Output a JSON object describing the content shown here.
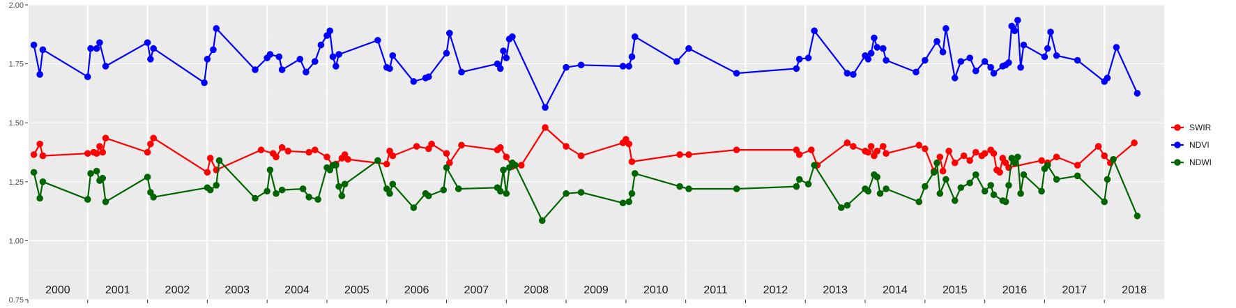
{
  "chart_data": {
    "type": "line",
    "title": "",
    "xlabel": "",
    "ylabel": "",
    "ylim": [
      0.75,
      2.0
    ],
    "y_ticks": [
      "0.75",
      "1.00",
      "1.25",
      "1.50",
      "1.75",
      "2.00"
    ],
    "xlim": [
      2000.0,
      2019.0
    ],
    "x_ticks": [
      2000,
      2001,
      2002,
      2003,
      2004,
      2005,
      2006,
      2007,
      2008,
      2009,
      2010,
      2011,
      2012,
      2013,
      2014,
      2015,
      2016,
      2017,
      2018
    ],
    "year_labels": [
      "2000",
      "2001",
      "2002",
      "2003",
      "2004",
      "2005",
      "2006",
      "2007",
      "2008",
      "2009",
      "2010",
      "2011",
      "2012",
      "2013",
      "2014",
      "2015",
      "2016",
      "2017",
      "2018"
    ],
    "grid": true,
    "legend_position": "right",
    "series": [
      {
        "name": "SWIR",
        "color": "#ff0000",
        "points": [
          [
            2000.1,
            1.365
          ],
          [
            2000.2,
            1.41
          ],
          [
            2000.25,
            1.36
          ],
          [
            2001.0,
            1.37
          ],
          [
            2001.1,
            1.375
          ],
          [
            2001.15,
            1.37
          ],
          [
            2001.2,
            1.4
          ],
          [
            2001.25,
            1.375
          ],
          [
            2001.3,
            1.435
          ],
          [
            2002.0,
            1.375
          ],
          [
            2002.05,
            1.41
          ],
          [
            2002.1,
            1.435
          ],
          [
            2003.0,
            1.29
          ],
          [
            2003.05,
            1.35
          ],
          [
            2003.15,
            1.3
          ],
          [
            2003.9,
            1.385
          ],
          [
            2004.1,
            1.37
          ],
          [
            2004.15,
            1.355
          ],
          [
            2004.25,
            1.395
          ],
          [
            2004.35,
            1.38
          ],
          [
            2004.7,
            1.375
          ],
          [
            2004.8,
            1.385
          ],
          [
            2005.0,
            1.355
          ],
          [
            2005.1,
            1.32
          ],
          [
            2005.15,
            1.325
          ],
          [
            2005.25,
            1.35
          ],
          [
            2005.3,
            1.365
          ],
          [
            2005.35,
            1.345
          ],
          [
            2006.0,
            1.325
          ],
          [
            2006.05,
            1.38
          ],
          [
            2006.1,
            1.36
          ],
          [
            2006.5,
            1.4
          ],
          [
            2006.7,
            1.39
          ],
          [
            2006.75,
            1.41
          ],
          [
            2007.0,
            1.37
          ],
          [
            2007.05,
            1.33
          ],
          [
            2007.25,
            1.405
          ],
          [
            2007.85,
            1.385
          ],
          [
            2007.9,
            1.395
          ],
          [
            2008.0,
            1.355
          ],
          [
            2008.1,
            1.315
          ],
          [
            2008.25,
            1.32
          ],
          [
            2008.65,
            1.48
          ],
          [
            2009.0,
            1.4
          ],
          [
            2009.25,
            1.36
          ],
          [
            2009.95,
            1.415
          ],
          [
            2010.0,
            1.43
          ],
          [
            2010.05,
            1.41
          ],
          [
            2010.1,
            1.335
          ],
          [
            2010.9,
            1.365
          ],
          [
            2011.05,
            1.365
          ],
          [
            2011.85,
            1.385
          ],
          [
            2012.85,
            1.385
          ],
          [
            2012.9,
            1.365
          ],
          [
            2013.1,
            1.385
          ],
          [
            2013.2,
            1.32
          ],
          [
            2013.7,
            1.415
          ],
          [
            2013.8,
            1.4
          ],
          [
            2014.0,
            1.38
          ],
          [
            2014.05,
            1.375
          ],
          [
            2014.1,
            1.4
          ],
          [
            2014.15,
            1.36
          ],
          [
            2014.2,
            1.38
          ],
          [
            2014.3,
            1.4
          ],
          [
            2014.35,
            1.37
          ],
          [
            2014.9,
            1.405
          ],
          [
            2015.0,
            1.39
          ],
          [
            2015.15,
            1.295
          ],
          [
            2015.25,
            1.355
          ],
          [
            2015.3,
            1.295
          ],
          [
            2015.4,
            1.38
          ],
          [
            2015.5,
            1.33
          ],
          [
            2015.65,
            1.36
          ],
          [
            2015.75,
            1.34
          ],
          [
            2015.85,
            1.375
          ],
          [
            2015.95,
            1.36
          ],
          [
            2016.0,
            1.37
          ],
          [
            2016.1,
            1.385
          ],
          [
            2016.15,
            1.37
          ],
          [
            2016.2,
            1.3
          ],
          [
            2016.25,
            1.29
          ],
          [
            2016.3,
            1.35
          ],
          [
            2016.35,
            1.33
          ],
          [
            2016.4,
            1.31
          ],
          [
            2016.95,
            1.34
          ],
          [
            2017.05,
            1.33
          ],
          [
            2017.2,
            1.355
          ],
          [
            2017.55,
            1.32
          ],
          [
            2017.9,
            1.4
          ],
          [
            2018.0,
            1.36
          ],
          [
            2018.1,
            1.33
          ],
          [
            2018.5,
            1.415
          ]
        ]
      },
      {
        "name": "NDVI",
        "color": "#0000ff",
        "points": [
          [
            2000.1,
            1.83
          ],
          [
            2000.2,
            1.705
          ],
          [
            2000.25,
            1.81
          ],
          [
            2001.0,
            1.695
          ],
          [
            2001.05,
            1.815
          ],
          [
            2001.15,
            1.815
          ],
          [
            2001.2,
            1.84
          ],
          [
            2001.3,
            1.74
          ],
          [
            2002.0,
            1.84
          ],
          [
            2002.05,
            1.77
          ],
          [
            2002.1,
            1.815
          ],
          [
            2002.95,
            1.67
          ],
          [
            2003.0,
            1.77
          ],
          [
            2003.1,
            1.81
          ],
          [
            2003.15,
            1.9
          ],
          [
            2003.8,
            1.725
          ],
          [
            2004.0,
            1.775
          ],
          [
            2004.05,
            1.79
          ],
          [
            2004.2,
            1.78
          ],
          [
            2004.25,
            1.725
          ],
          [
            2004.55,
            1.77
          ],
          [
            2004.65,
            1.715
          ],
          [
            2004.8,
            1.76
          ],
          [
            2004.9,
            1.83
          ],
          [
            2005.0,
            1.87
          ],
          [
            2005.05,
            1.89
          ],
          [
            2005.1,
            1.78
          ],
          [
            2005.15,
            1.74
          ],
          [
            2005.2,
            1.79
          ],
          [
            2005.85,
            1.85
          ],
          [
            2006.0,
            1.735
          ],
          [
            2006.05,
            1.73
          ],
          [
            2006.1,
            1.785
          ],
          [
            2006.45,
            1.675
          ],
          [
            2006.65,
            1.69
          ],
          [
            2006.7,
            1.695
          ],
          [
            2007.0,
            1.795
          ],
          [
            2007.05,
            1.88
          ],
          [
            2007.25,
            1.715
          ],
          [
            2007.85,
            1.75
          ],
          [
            2007.9,
            1.73
          ],
          [
            2007.95,
            1.805
          ],
          [
            2008.0,
            1.775
          ],
          [
            2008.05,
            1.855
          ],
          [
            2008.1,
            1.865
          ],
          [
            2008.65,
            1.565
          ],
          [
            2009.0,
            1.735
          ],
          [
            2009.25,
            1.745
          ],
          [
            2009.95,
            1.74
          ],
          [
            2010.05,
            1.74
          ],
          [
            2010.1,
            1.78
          ],
          [
            2010.15,
            1.865
          ],
          [
            2010.85,
            1.76
          ],
          [
            2011.05,
            1.815
          ],
          [
            2011.85,
            1.71
          ],
          [
            2012.85,
            1.73
          ],
          [
            2012.9,
            1.77
          ],
          [
            2013.05,
            1.775
          ],
          [
            2013.15,
            1.89
          ],
          [
            2013.7,
            1.71
          ],
          [
            2013.8,
            1.705
          ],
          [
            2014.0,
            1.785
          ],
          [
            2014.05,
            1.77
          ],
          [
            2014.1,
            1.795
          ],
          [
            2014.15,
            1.86
          ],
          [
            2014.2,
            1.82
          ],
          [
            2014.3,
            1.815
          ],
          [
            2014.35,
            1.765
          ],
          [
            2014.85,
            1.715
          ],
          [
            2015.0,
            1.765
          ],
          [
            2015.2,
            1.845
          ],
          [
            2015.3,
            1.8
          ],
          [
            2015.35,
            1.9
          ],
          [
            2015.5,
            1.69
          ],
          [
            2015.6,
            1.76
          ],
          [
            2015.75,
            1.775
          ],
          [
            2015.85,
            1.72
          ],
          [
            2016.0,
            1.76
          ],
          [
            2016.1,
            1.735
          ],
          [
            2016.15,
            1.71
          ],
          [
            2016.3,
            1.74
          ],
          [
            2016.35,
            1.745
          ],
          [
            2016.4,
            1.755
          ],
          [
            2016.45,
            1.91
          ],
          [
            2016.5,
            1.89
          ],
          [
            2016.55,
            1.935
          ],
          [
            2016.6,
            1.735
          ],
          [
            2016.65,
            1.83
          ],
          [
            2017.0,
            1.78
          ],
          [
            2017.05,
            1.815
          ],
          [
            2017.1,
            1.885
          ],
          [
            2017.2,
            1.785
          ],
          [
            2017.55,
            1.765
          ],
          [
            2018.0,
            1.675
          ],
          [
            2018.05,
            1.69
          ],
          [
            2018.2,
            1.82
          ],
          [
            2018.55,
            1.625
          ]
        ]
      },
      {
        "name": "NDWI",
        "color": "#006400",
        "points": [
          [
            2000.1,
            1.29
          ],
          [
            2000.2,
            1.18
          ],
          [
            2000.25,
            1.25
          ],
          [
            2001.0,
            1.175
          ],
          [
            2001.05,
            1.285
          ],
          [
            2001.15,
            1.295
          ],
          [
            2001.2,
            1.255
          ],
          [
            2001.25,
            1.265
          ],
          [
            2001.3,
            1.165
          ],
          [
            2002.0,
            1.27
          ],
          [
            2002.05,
            1.205
          ],
          [
            2002.1,
            1.185
          ],
          [
            2003.0,
            1.225
          ],
          [
            2003.05,
            1.215
          ],
          [
            2003.15,
            1.235
          ],
          [
            2003.2,
            1.34
          ],
          [
            2003.8,
            1.18
          ],
          [
            2004.0,
            1.21
          ],
          [
            2004.05,
            1.3
          ],
          [
            2004.15,
            1.2
          ],
          [
            2004.25,
            1.215
          ],
          [
            2004.6,
            1.22
          ],
          [
            2004.7,
            1.185
          ],
          [
            2004.85,
            1.175
          ],
          [
            2005.0,
            1.31
          ],
          [
            2005.05,
            1.3
          ],
          [
            2005.1,
            1.32
          ],
          [
            2005.15,
            1.32
          ],
          [
            2005.2,
            1.23
          ],
          [
            2005.25,
            1.19
          ],
          [
            2005.3,
            1.24
          ],
          [
            2005.85,
            1.34
          ],
          [
            2006.0,
            1.22
          ],
          [
            2006.05,
            1.2
          ],
          [
            2006.1,
            1.24
          ],
          [
            2006.45,
            1.14
          ],
          [
            2006.65,
            1.2
          ],
          [
            2006.7,
            1.19
          ],
          [
            2006.95,
            1.215
          ],
          [
            2007.0,
            1.31
          ],
          [
            2007.2,
            1.22
          ],
          [
            2007.85,
            1.225
          ],
          [
            2007.9,
            1.21
          ],
          [
            2007.95,
            1.3
          ],
          [
            2008.0,
            1.2
          ],
          [
            2008.05,
            1.31
          ],
          [
            2008.1,
            1.33
          ],
          [
            2008.15,
            1.32
          ],
          [
            2008.6,
            1.085
          ],
          [
            2009.0,
            1.2
          ],
          [
            2009.25,
            1.205
          ],
          [
            2009.95,
            1.16
          ],
          [
            2010.05,
            1.165
          ],
          [
            2010.1,
            1.2
          ],
          [
            2010.15,
            1.285
          ],
          [
            2010.9,
            1.23
          ],
          [
            2011.05,
            1.22
          ],
          [
            2011.85,
            1.22
          ],
          [
            2012.85,
            1.23
          ],
          [
            2012.9,
            1.26
          ],
          [
            2013.05,
            1.24
          ],
          [
            2013.15,
            1.32
          ],
          [
            2013.6,
            1.14
          ],
          [
            2013.7,
            1.15
          ],
          [
            2014.0,
            1.22
          ],
          [
            2014.05,
            1.21
          ],
          [
            2014.15,
            1.28
          ],
          [
            2014.2,
            1.27
          ],
          [
            2014.25,
            1.2
          ],
          [
            2014.35,
            1.22
          ],
          [
            2014.9,
            1.165
          ],
          [
            2015.0,
            1.23
          ],
          [
            2015.15,
            1.29
          ],
          [
            2015.2,
            1.33
          ],
          [
            2015.25,
            1.2
          ],
          [
            2015.35,
            1.26
          ],
          [
            2015.5,
            1.17
          ],
          [
            2015.6,
            1.225
          ],
          [
            2015.75,
            1.245
          ],
          [
            2015.85,
            1.28
          ],
          [
            2016.0,
            1.21
          ],
          [
            2016.1,
            1.235
          ],
          [
            2016.15,
            1.195
          ],
          [
            2016.3,
            1.17
          ],
          [
            2016.35,
            1.165
          ],
          [
            2016.4,
            1.235
          ],
          [
            2016.45,
            1.35
          ],
          [
            2016.5,
            1.33
          ],
          [
            2016.55,
            1.355
          ],
          [
            2016.6,
            1.2
          ],
          [
            2016.65,
            1.28
          ],
          [
            2016.95,
            1.21
          ],
          [
            2017.0,
            1.305
          ],
          [
            2017.05,
            1.32
          ],
          [
            2017.2,
            1.26
          ],
          [
            2017.55,
            1.275
          ],
          [
            2018.0,
            1.165
          ],
          [
            2018.05,
            1.26
          ],
          [
            2018.15,
            1.345
          ],
          [
            2018.55,
            1.105
          ]
        ]
      }
    ]
  }
}
